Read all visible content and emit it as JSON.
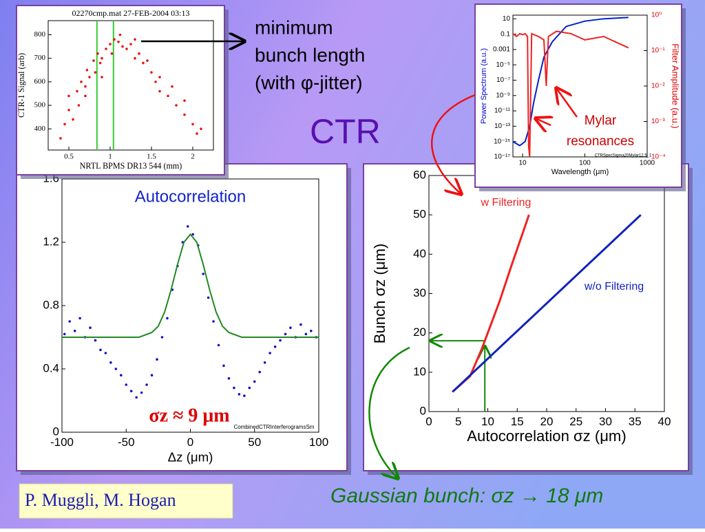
{
  "slide": {
    "callout": [
      "minimum",
      "bunch length",
      "(with φ-jitter)"
    ],
    "heading": "CTR",
    "authors": "P. Muggli, M. Hogan",
    "result": "Gaussian bunch: σz → 18 μm"
  },
  "chart_data": [
    {
      "type": "scatter",
      "title": "02270cmp.mat 27-FEB-2004 03:13",
      "xlabel": "NRTL BPMS DR13  544 (mm)",
      "ylabel": "CTR-1 Signal (arb)",
      "xlim": [
        0.25,
        2.25
      ],
      "ylim": [
        310,
        860
      ],
      "xticks": [
        0.5,
        1,
        1.5,
        2
      ],
      "yticks": [
        400,
        500,
        600,
        700,
        800
      ],
      "vlines": [
        0.84,
        1.04
      ],
      "vline_color": "#33cc33",
      "series": [
        {
          "color": "#ee1111",
          "x": [
            0.4,
            0.45,
            0.5,
            0.55,
            0.6,
            0.62,
            0.65,
            0.7,
            0.72,
            0.75,
            0.8,
            0.82,
            0.85,
            0.88,
            0.9,
            0.95,
            1.0,
            1.02,
            1.05,
            1.1,
            1.12,
            1.15,
            1.2,
            1.25,
            1.3,
            1.35,
            1.4,
            1.45,
            1.5,
            1.55,
            1.6,
            1.7,
            1.75,
            1.8,
            1.9,
            2.0,
            2.05,
            2.1,
            0.5,
            0.7,
            0.9,
            1.3,
            1.6,
            1.9
          ],
          "values": [
            360,
            420,
            480,
            440,
            560,
            500,
            600,
            540,
            650,
            620,
            690,
            640,
            720,
            680,
            700,
            740,
            760,
            720,
            780,
            770,
            800,
            750,
            740,
            760,
            700,
            720,
            680,
            690,
            640,
            600,
            620,
            540,
            580,
            500,
            460,
            420,
            380,
            400,
            540,
            580,
            620,
            780,
            560,
            520
          ]
        }
      ]
    },
    {
      "type": "scatter",
      "title": "Autocorrelation",
      "xlabel": "Δz (μm)",
      "annotations": [
        "σz ≈ 9 μm",
        "CombinedCTRInterferogramsSm"
      ],
      "xlim": [
        -100,
        100
      ],
      "ylim": [
        0,
        1.6
      ],
      "xticks": [
        -100,
        -50,
        0,
        50,
        100
      ],
      "yticks": [
        0,
        0.4,
        0.8,
        1.2,
        1.6
      ],
      "series": [
        {
          "color": "#1111cc",
          "x": [
            -98,
            -94,
            -90,
            -86,
            -82,
            -78,
            -74,
            -70,
            -66,
            -62,
            -58,
            -54,
            -50,
            -46,
            -42,
            -38,
            -34,
            -30,
            -26,
            -22,
            -18,
            -14,
            -10,
            -6,
            -2,
            2,
            6,
            10,
            14,
            18,
            22,
            26,
            30,
            34,
            38,
            42,
            46,
            50,
            54,
            58,
            62,
            66,
            70,
            74,
            78,
            82,
            86,
            90,
            94,
            98
          ],
          "values": [
            0.62,
            0.7,
            0.64,
            0.72,
            0.6,
            0.66,
            0.58,
            0.52,
            0.5,
            0.44,
            0.4,
            0.36,
            0.3,
            0.26,
            0.22,
            0.25,
            0.3,
            0.36,
            0.46,
            0.6,
            0.72,
            0.9,
            1.05,
            1.2,
            1.3,
            1.25,
            1.18,
            1.0,
            0.85,
            0.7,
            0.55,
            0.42,
            0.34,
            0.28,
            0.24,
            0.23,
            0.28,
            0.32,
            0.38,
            0.44,
            0.5,
            0.54,
            0.58,
            0.62,
            0.66,
            0.6,
            0.68,
            0.62,
            0.64,
            0.6
          ]
        },
        {
          "type": "line",
          "color": "#228822",
          "x": [
            -100,
            -40,
            -30,
            -25,
            -20,
            -15,
            -10,
            -5,
            0,
            5,
            10,
            15,
            20,
            25,
            30,
            40,
            100
          ],
          "values": [
            0.6,
            0.6,
            0.63,
            0.67,
            0.76,
            0.9,
            1.06,
            1.2,
            1.25,
            1.2,
            1.06,
            0.9,
            0.76,
            0.67,
            0.63,
            0.6,
            0.6
          ]
        }
      ]
    },
    {
      "type": "line",
      "xlabel": "Autocorrelation σz (μm)",
      "ylabel": "Bunch σz (μm)",
      "xlim": [
        0,
        40
      ],
      "ylim": [
        0,
        60
      ],
      "xticks": [
        0,
        5,
        10,
        15,
        20,
        25,
        30,
        35,
        40
      ],
      "yticks": [
        0,
        10,
        20,
        30,
        40,
        50,
        60
      ],
      "guide": {
        "x": 9.5,
        "y": 18,
        "color": "#118811"
      },
      "series": [
        {
          "name": "w Filtering",
          "color": "#ee2222",
          "x": [
            4,
            7,
            9,
            10,
            12,
            14,
            17
          ],
          "values": [
            5,
            9,
            16,
            20,
            28,
            37,
            50
          ]
        },
        {
          "name": "w/o Filtering",
          "color": "#1122bb",
          "x": [
            4,
            36
          ],
          "values": [
            5,
            50
          ]
        }
      ]
    },
    {
      "type": "line",
      "xlabel": "Wavelength (μm)",
      "ylabel": "Power Spectrum (a.u.)",
      "y2label": "Filter Amplitude (a.u.)",
      "ylabel_color": "#0000cc",
      "y2label_color": "#dd0000",
      "annotations": [
        "Mylar",
        "resonances",
        "CTRSpecSigma20Mylar12.5_1"
      ],
      "xlog": true,
      "ylog": true,
      "y2log": true,
      "xlim": [
        7,
        1000
      ],
      "ylim": [
        1e-17,
        30
      ],
      "y2lim": [
        0.0001,
        1
      ],
      "xticks": [
        10,
        100,
        1000
      ],
      "yticks": [
        10,
        0.1,
        0.001,
        {
          "value": 1e-05,
          "label": "10⁻⁵"
        },
        {
          "value": 1e-07,
          "label": "10⁻⁷"
        },
        {
          "value": 1e-09,
          "label": "10⁻⁹"
        },
        {
          "value": 1e-11,
          "label": "10⁻¹¹"
        },
        {
          "value": 1e-13,
          "label": "10⁻¹³"
        },
        {
          "value": 1e-15,
          "label": "10⁻¹⁵"
        },
        {
          "value": 1e-17,
          "label": "10⁻¹⁷"
        }
      ],
      "y2ticks": [
        {
          "value": 1,
          "label": "10⁰"
        },
        {
          "value": 0.1,
          "label": "10⁻¹"
        },
        {
          "value": 0.01,
          "label": "10⁻²"
        },
        {
          "value": 0.001,
          "label": "10⁻³"
        },
        {
          "value": 0.0001,
          "label": "10⁻⁴"
        }
      ],
      "series": [
        {
          "color": "#0022cc",
          "x": [
            7,
            9,
            11,
            13,
            15,
            18,
            22,
            30,
            50,
            100,
            200,
            500
          ],
          "values": [
            1e-15,
            3e-16,
            1e-15,
            1e-13,
            1e-10,
            1e-07,
            0.0001,
            0.01,
            1,
            5,
            10,
            15
          ]
        },
        {
          "color": "#ee2222",
          "axis": "y2",
          "x": [
            7,
            8,
            9,
            10,
            11,
            12,
            12.5,
            13,
            14,
            18,
            22,
            24,
            26,
            35,
            60,
            100,
            200,
            500
          ],
          "values": [
            0.3,
            0.25,
            0.3,
            0.28,
            0.3,
            0.25,
            0.0002,
            0.0001,
            0.3,
            0.25,
            0.2,
            0.01,
            0.25,
            0.35,
            0.3,
            0.2,
            0.25,
            0.12
          ]
        }
      ]
    }
  ]
}
